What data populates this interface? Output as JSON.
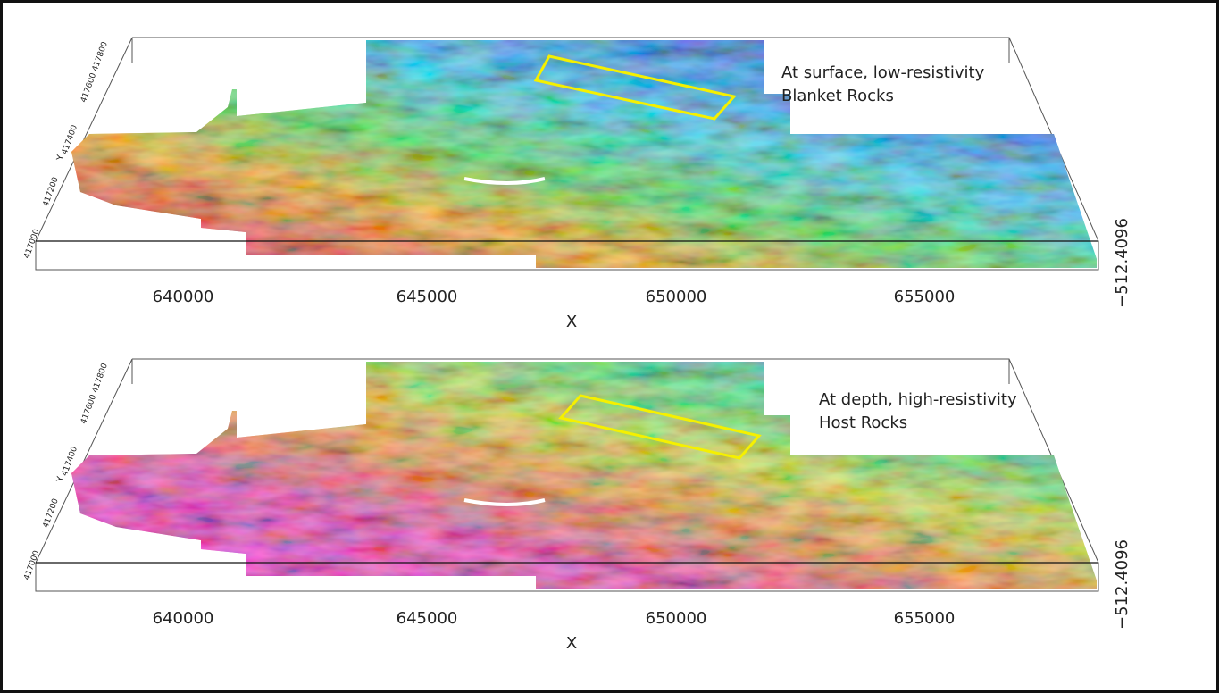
{
  "panels": [
    {
      "annotation": [
        "At surface, low-resistivity",
        "Blanket Rocks"
      ],
      "x_ticks": [
        "640000",
        "645000",
        "650000",
        "655000"
      ],
      "x_label": "X",
      "y_label": "Y",
      "y_ticks": [
        "417000",
        "417200",
        "417400",
        "417600 417800"
      ],
      "z_label": "−512.4096"
    },
    {
      "annotation": [
        "At depth, high-resistivity",
        "Host Rocks"
      ],
      "x_ticks": [
        "640000",
        "645000",
        "650000",
        "655000"
      ],
      "x_label": "X",
      "y_label": "Y",
      "y_ticks": [
        "417000",
        "417200",
        "417400",
        "417600 417800"
      ],
      "z_label": "−512.4096"
    }
  ]
}
